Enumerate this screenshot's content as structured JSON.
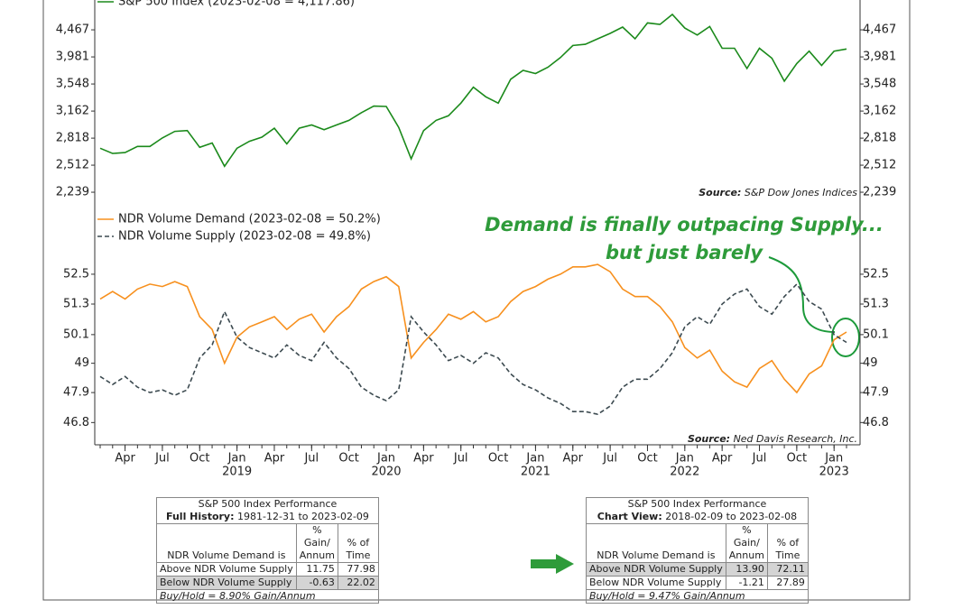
{
  "chart_data": [
    {
      "type": "line",
      "log": true,
      "source_label": "Source:",
      "source": "S&P Dow Jones Indices",
      "xlim": [
        "2018-02",
        "2023-02"
      ],
      "x": [
        "2018-02",
        "2018-03",
        "2018-04",
        "2018-05",
        "2018-06",
        "2018-07",
        "2018-08",
        "2018-09",
        "2018-10",
        "2018-11",
        "2018-12",
        "2019-01",
        "2019-02",
        "2019-03",
        "2019-04",
        "2019-05",
        "2019-06",
        "2019-07",
        "2019-08",
        "2019-09",
        "2019-10",
        "2019-11",
        "2019-12",
        "2020-01",
        "2020-02",
        "2020-03",
        "2020-04",
        "2020-05",
        "2020-06",
        "2020-07",
        "2020-08",
        "2020-09",
        "2020-10",
        "2020-11",
        "2020-12",
        "2021-01",
        "2021-02",
        "2021-03",
        "2021-04",
        "2021-05",
        "2021-06",
        "2021-07",
        "2021-08",
        "2021-09",
        "2021-10",
        "2021-11",
        "2021-12",
        "2022-01",
        "2022-02",
        "2022-03",
        "2022-04",
        "2022-05",
        "2022-06",
        "2022-07",
        "2022-08",
        "2022-09",
        "2022-10",
        "2022-11",
        "2022-12",
        "2023-01",
        "2023-02"
      ],
      "series": [
        {
          "name": "S&P 500 Index (2023-02-08 = 4,117.86)",
          "color": "#1b8a1b",
          "values": [
            2700,
            2640,
            2650,
            2720,
            2720,
            2820,
            2900,
            2910,
            2710,
            2760,
            2500,
            2700,
            2780,
            2830,
            2940,
            2750,
            2940,
            2980,
            2920,
            2980,
            3040,
            3140,
            3230,
            3225,
            2950,
            2580,
            2910,
            3040,
            3100,
            3270,
            3500,
            3360,
            3270,
            3620,
            3760,
            3710,
            3810,
            3970,
            4180,
            4200,
            4300,
            4400,
            4520,
            4300,
            4600,
            4570,
            4770,
            4500,
            4370,
            4530,
            4130,
            4130,
            3790,
            4130,
            3960,
            3590,
            3870,
            4080,
            3840,
            4080,
            4118
          ]
        }
      ],
      "ylim": [
        2180,
        4975
      ],
      "yticks": [
        {
          "value": 2239,
          "label": "2,239"
        },
        {
          "value": 2512,
          "label": "2,512"
        },
        {
          "value": 2818,
          "label": "2,818"
        },
        {
          "value": 3162,
          "label": "3,162"
        },
        {
          "value": 3548,
          "label": "3,548"
        },
        {
          "value": 3981,
          "label": "3,981"
        },
        {
          "value": 4467,
          "label": "4,467"
        }
      ]
    },
    {
      "type": "line",
      "log": true,
      "source_label": "Source:",
      "source": "Ned Davis Research, Inc.",
      "annotations": [
        "Demand is finally outpacing Supply...",
        "but just barely"
      ],
      "xlim": [
        "2018-02",
        "2023-02"
      ],
      "x": [
        "2018-02",
        "2018-03",
        "2018-04",
        "2018-05",
        "2018-06",
        "2018-07",
        "2018-08",
        "2018-09",
        "2018-10",
        "2018-11",
        "2018-12",
        "2019-01",
        "2019-02",
        "2019-03",
        "2019-04",
        "2019-05",
        "2019-06",
        "2019-07",
        "2019-08",
        "2019-09",
        "2019-10",
        "2019-11",
        "2019-12",
        "2020-01",
        "2020-02",
        "2020-03",
        "2020-04",
        "2020-05",
        "2020-06",
        "2020-07",
        "2020-08",
        "2020-09",
        "2020-10",
        "2020-11",
        "2020-12",
        "2021-01",
        "2021-02",
        "2021-03",
        "2021-04",
        "2021-05",
        "2021-06",
        "2021-07",
        "2021-08",
        "2021-09",
        "2021-10",
        "2021-11",
        "2021-12",
        "2022-01",
        "2022-02",
        "2022-03",
        "2022-04",
        "2022-05",
        "2022-06",
        "2022-07",
        "2022-08",
        "2022-09",
        "2022-10",
        "2022-11",
        "2022-12",
        "2023-01",
        "2023-02"
      ],
      "series": [
        {
          "name": "NDR Volume Demand (2023-02-08 = 50.2%)",
          "color": "#f7901e",
          "dashed": false,
          "values": [
            51.5,
            51.8,
            51.5,
            51.9,
            52.1,
            52.0,
            52.2,
            52.0,
            50.8,
            50.3,
            49.0,
            50.0,
            50.4,
            50.6,
            50.8,
            50.3,
            50.7,
            50.9,
            50.2,
            50.8,
            51.2,
            51.9,
            52.2,
            52.4,
            52.0,
            49.2,
            49.8,
            50.3,
            50.9,
            50.7,
            51.0,
            50.6,
            50.8,
            51.4,
            51.8,
            52.0,
            52.3,
            52.5,
            52.8,
            52.8,
            52.9,
            52.6,
            51.9,
            51.6,
            51.6,
            51.2,
            50.6,
            49.6,
            49.2,
            49.5,
            48.7,
            48.3,
            48.1,
            48.8,
            49.1,
            48.4,
            47.9,
            48.6,
            48.9,
            49.9,
            50.2
          ]
        },
        {
          "name": "NDR Volume Supply (2023-02-08 = 49.8%)",
          "color": "#3c4a50",
          "dashed": true,
          "values": [
            48.5,
            48.2,
            48.5,
            48.1,
            47.9,
            48.0,
            47.8,
            48.0,
            49.2,
            49.7,
            51.0,
            50.0,
            49.6,
            49.4,
            49.2,
            49.7,
            49.3,
            49.1,
            49.8,
            49.2,
            48.8,
            48.1,
            47.8,
            47.6,
            48.0,
            50.8,
            50.2,
            49.7,
            49.1,
            49.3,
            49.0,
            49.4,
            49.2,
            48.6,
            48.2,
            48.0,
            47.7,
            47.5,
            47.2,
            47.2,
            47.1,
            47.4,
            48.1,
            48.4,
            48.4,
            48.8,
            49.4,
            50.4,
            50.8,
            50.5,
            51.3,
            51.7,
            51.9,
            51.2,
            50.9,
            51.6,
            52.1,
            51.4,
            51.1,
            50.1,
            49.8
          ]
        }
      ],
      "ylim": [
        46.0,
        54.9
      ],
      "yticks": [
        46.8,
        47.9,
        49.0,
        50.1,
        51.3,
        52.5
      ],
      "xticks": [
        {
          "value": "2018-04",
          "label": "Apr"
        },
        {
          "value": "2018-07",
          "label": "Jul"
        },
        {
          "value": "2018-10",
          "label": "Oct"
        },
        {
          "value": "2019-01",
          "label": "Jan"
        },
        {
          "value": "2019-04",
          "label": "Apr"
        },
        {
          "value": "2019-07",
          "label": "Jul"
        },
        {
          "value": "2019-10",
          "label": "Oct"
        },
        {
          "value": "2020-01",
          "label": "Jan"
        },
        {
          "value": "2020-04",
          "label": "Apr"
        },
        {
          "value": "2020-07",
          "label": "Jul"
        },
        {
          "value": "2020-10",
          "label": "Oct"
        },
        {
          "value": "2021-01",
          "label": "Jan"
        },
        {
          "value": "2021-04",
          "label": "Apr"
        },
        {
          "value": "2021-07",
          "label": "Jul"
        },
        {
          "value": "2021-10",
          "label": "Oct"
        },
        {
          "value": "2022-01",
          "label": "Jan"
        },
        {
          "value": "2022-04",
          "label": "Apr"
        },
        {
          "value": "2022-07",
          "label": "Jul"
        },
        {
          "value": "2022-10",
          "label": "Oct"
        },
        {
          "value": "2023-01",
          "label": "Jan"
        }
      ],
      "xtick_years": [
        {
          "value": "2019-01",
          "label": "2019"
        },
        {
          "value": "2020-01",
          "label": "2020"
        },
        {
          "value": "2021-01",
          "label": "2021"
        },
        {
          "value": "2022-01",
          "label": "2022"
        },
        {
          "value": "2023-01",
          "label": "2023"
        }
      ]
    }
  ],
  "tables": [
    {
      "title": "S&P 500 Index Performance",
      "range_label": "Full History:",
      "range": "1981-12-31 to 2023-02-09",
      "columns": [
        "NDR Volume Demand is",
        "% Gain/ Annum",
        "% of Time"
      ],
      "rows": [
        [
          "Above NDR Volume Supply",
          "11.75",
          "77.98"
        ],
        [
          "Below NDR Volume Supply",
          "-0.63",
          "22.02"
        ]
      ],
      "highlight_row": 1,
      "footer": "Buy/Hold = 8.90% Gain/Annum"
    },
    {
      "title": "S&P 500 Index Performance",
      "range_label": "Chart View:",
      "range": "2018-02-09 to 2023-02-08",
      "columns": [
        "NDR Volume Demand is",
        "% Gain/ Annum",
        "% of Time"
      ],
      "rows": [
        [
          "Above NDR Volume Supply",
          "13.90",
          "72.11"
        ],
        [
          "Below NDR Volume Supply",
          "-1.21",
          "27.89"
        ]
      ],
      "highlight_row": 0,
      "footer": "Buy/Hold = 9.47% Gain/Annum"
    }
  ]
}
